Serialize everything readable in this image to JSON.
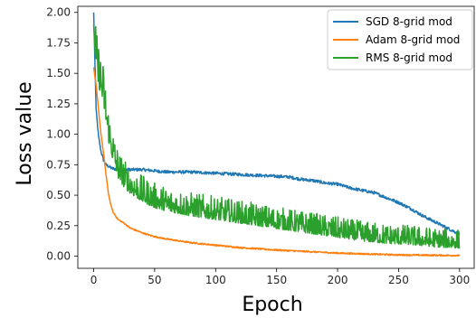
{
  "chart_data": {
    "type": "line",
    "title": "",
    "xlabel": "Epoch",
    "ylabel": "Loss value",
    "xlim": [
      -13,
      312
    ],
    "ylim": [
      -0.1,
      2.05
    ],
    "x_ticks": [
      0,
      50,
      100,
      150,
      200,
      250,
      300
    ],
    "x_tick_labels": [
      "0",
      "50",
      "100",
      "150",
      "200",
      "250",
      "300"
    ],
    "y_ticks": [
      0.0,
      0.25,
      0.5,
      0.75,
      1.0,
      1.25,
      1.5,
      1.75,
      2.0
    ],
    "y_tick_labels": [
      "0.00",
      "0.25",
      "0.50",
      "0.75",
      "1.00",
      "1.25",
      "1.50",
      "1.75",
      "2.00"
    ],
    "grid": false,
    "legend_position": "top-right",
    "series": [
      {
        "name": "SGD 8-grid mod",
        "color": "#1f77b4",
        "x": [
          0,
          2,
          4,
          6,
          8,
          10,
          15,
          20,
          30,
          40,
          60,
          80,
          100,
          120,
          140,
          160,
          170,
          180,
          190,
          200,
          210,
          220,
          230,
          240,
          250,
          260,
          270,
          280,
          290,
          300
        ],
        "y": [
          2.0,
          1.2,
          0.98,
          0.86,
          0.79,
          0.75,
          0.72,
          0.71,
          0.71,
          0.71,
          0.69,
          0.69,
          0.68,
          0.67,
          0.66,
          0.65,
          0.63,
          0.62,
          0.6,
          0.59,
          0.56,
          0.54,
          0.52,
          0.48,
          0.44,
          0.39,
          0.33,
          0.28,
          0.23,
          0.18
        ]
      },
      {
        "name": "Adam 8-grid mod",
        "color": "#ff7f0e",
        "x": [
          0,
          2,
          4,
          6,
          8,
          10,
          12,
          14,
          16,
          18,
          20,
          25,
          30,
          40,
          50,
          60,
          80,
          100,
          120,
          150,
          180,
          200,
          250,
          300
        ],
        "y": [
          1.55,
          1.4,
          1.2,
          1.0,
          0.85,
          0.68,
          0.52,
          0.42,
          0.36,
          0.33,
          0.3,
          0.27,
          0.23,
          0.19,
          0.16,
          0.14,
          0.11,
          0.09,
          0.07,
          0.05,
          0.035,
          0.025,
          0.01,
          0.005
        ]
      },
      {
        "name": "RMS 8-grid mod",
        "color": "#2ca02c",
        "x": [
          0,
          2,
          4,
          6,
          8,
          10,
          12,
          14,
          16,
          18,
          20,
          25,
          30,
          40,
          50,
          60,
          80,
          100,
          120,
          140,
          160,
          180,
          200,
          220,
          240,
          260,
          280,
          300
        ],
        "y": [
          1.9,
          1.55,
          1.45,
          1.38,
          1.3,
          1.15,
          1.0,
          0.9,
          0.82,
          0.75,
          0.68,
          0.6,
          0.55,
          0.48,
          0.43,
          0.4,
          0.36,
          0.33,
          0.3,
          0.27,
          0.24,
          0.21,
          0.18,
          0.15,
          0.13,
          0.12,
          0.1,
          0.09
        ]
      }
    ]
  }
}
